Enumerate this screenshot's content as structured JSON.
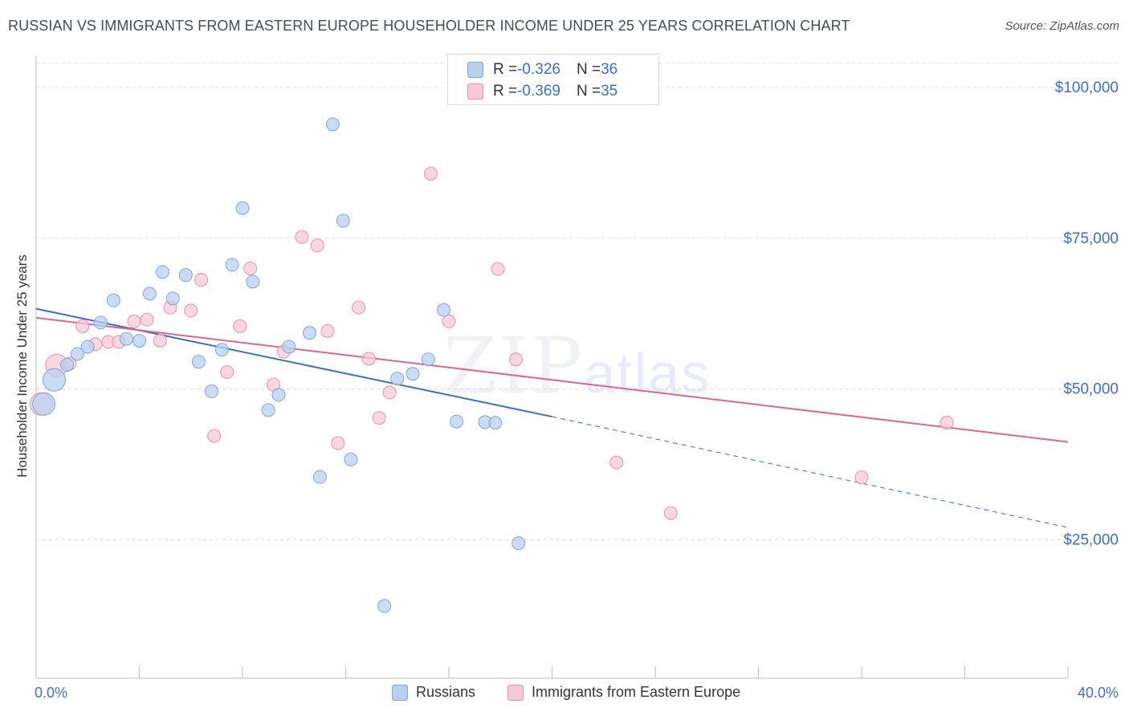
{
  "title": "RUSSIAN VS IMMIGRANTS FROM EASTERN EUROPE HOUSEHOLDER INCOME UNDER 25 YEARS CORRELATION CHART",
  "source": "Source: ZipAtlas.com",
  "watermark": {
    "zip": "ZIP",
    "atlas": "atlas"
  },
  "legend_top": {
    "rows": [
      {
        "r_label": "R = ",
        "r_value": "-0.326",
        "n_label": "N = ",
        "n_value": "36"
      },
      {
        "r_label": "R = ",
        "r_value": "-0.369",
        "n_label": "N = ",
        "n_value": "35"
      }
    ]
  },
  "colors": {
    "blue_fill": "#b8d0f0",
    "blue_stroke": "#7ea6dc",
    "blue_line": "#3b6fcc",
    "pink_fill": "#f7c8d6",
    "pink_stroke": "#e792ad",
    "pink_line": "#e0648e",
    "axis_text": "#3d6fc9",
    "grid": "#dddddd"
  },
  "chart_data": {
    "type": "scatter",
    "title": "RUSSIAN VS IMMIGRANTS FROM EASTERN EUROPE HOUSEHOLDER INCOME UNDER 25 YEARS CORRELATION CHART",
    "xlabel": "",
    "ylabel": "Householder Income Under 25 years",
    "xlim": [
      0,
      40
    ],
    "ylim": [
      2000,
      104000
    ],
    "x_tick_labels": [
      "0.0%",
      "40.0%"
    ],
    "y_ticks": [
      25000,
      50000,
      75000,
      100000
    ],
    "y_tick_labels": [
      "$25,000",
      "$50,000",
      "$75,000",
      "$100,000"
    ],
    "series": [
      {
        "name": "Russians",
        "r": -0.326,
        "n": 36,
        "trend": {
          "x_start": 0,
          "y_start": 63300,
          "x_solid_end": 20,
          "y_solid_end": 45400,
          "x_end": 40,
          "y_end": 27000
        },
        "points": [
          {
            "x": 0.3,
            "y": 47500,
            "big": true
          },
          {
            "x": 0.7,
            "y": 51500,
            "big": true
          },
          {
            "x": 1.2,
            "y": 54000
          },
          {
            "x": 1.6,
            "y": 55800
          },
          {
            "x": 2.0,
            "y": 57000
          },
          {
            "x": 2.5,
            "y": 61000
          },
          {
            "x": 3.0,
            "y": 64700
          },
          {
            "x": 3.5,
            "y": 58300
          },
          {
            "x": 4.0,
            "y": 58000
          },
          {
            "x": 4.4,
            "y": 65800
          },
          {
            "x": 4.9,
            "y": 69400
          },
          {
            "x": 5.3,
            "y": 65000
          },
          {
            "x": 5.8,
            "y": 68900
          },
          {
            "x": 6.3,
            "y": 54500
          },
          {
            "x": 6.8,
            "y": 49600
          },
          {
            "x": 7.2,
            "y": 56500
          },
          {
            "x": 7.6,
            "y": 70600
          },
          {
            "x": 8.0,
            "y": 80000
          },
          {
            "x": 8.4,
            "y": 67800
          },
          {
            "x": 9.0,
            "y": 46500
          },
          {
            "x": 9.4,
            "y": 49000
          },
          {
            "x": 9.8,
            "y": 57000
          },
          {
            "x": 10.6,
            "y": 59300
          },
          {
            "x": 11.0,
            "y": 35400
          },
          {
            "x": 11.5,
            "y": 93900
          },
          {
            "x": 11.9,
            "y": 77900
          },
          {
            "x": 12.2,
            "y": 38300
          },
          {
            "x": 13.5,
            "y": 14000
          },
          {
            "x": 14.0,
            "y": 51700
          },
          {
            "x": 14.6,
            "y": 52500
          },
          {
            "x": 15.2,
            "y": 54900
          },
          {
            "x": 15.8,
            "y": 63100
          },
          {
            "x": 16.3,
            "y": 44600
          },
          {
            "x": 17.4,
            "y": 44500
          },
          {
            "x": 17.8,
            "y": 44400
          },
          {
            "x": 18.7,
            "y": 24400
          }
        ]
      },
      {
        "name": "Immigrants from Eastern Europe",
        "r": -0.369,
        "n": 35,
        "trend": {
          "x_start": 0,
          "y_start": 61800,
          "x_end": 40,
          "y_end": 41200
        },
        "points": [
          {
            "x": 0.2,
            "y": 47500,
            "big": true
          },
          {
            "x": 0.8,
            "y": 53900,
            "big": true
          },
          {
            "x": 1.3,
            "y": 54200
          },
          {
            "x": 1.8,
            "y": 60400
          },
          {
            "x": 2.3,
            "y": 57400
          },
          {
            "x": 2.8,
            "y": 57800
          },
          {
            "x": 3.2,
            "y": 57800
          },
          {
            "x": 3.8,
            "y": 61200
          },
          {
            "x": 4.3,
            "y": 61500
          },
          {
            "x": 4.8,
            "y": 58000
          },
          {
            "x": 5.2,
            "y": 63500
          },
          {
            "x": 6.0,
            "y": 63000
          },
          {
            "x": 6.4,
            "y": 68100
          },
          {
            "x": 6.9,
            "y": 42200
          },
          {
            "x": 7.4,
            "y": 52800
          },
          {
            "x": 7.9,
            "y": 60400
          },
          {
            "x": 8.3,
            "y": 70000
          },
          {
            "x": 9.2,
            "y": 50700
          },
          {
            "x": 9.6,
            "y": 56200
          },
          {
            "x": 10.3,
            "y": 75200
          },
          {
            "x": 10.9,
            "y": 73800
          },
          {
            "x": 11.3,
            "y": 59600
          },
          {
            "x": 11.7,
            "y": 41000
          },
          {
            "x": 12.5,
            "y": 63500
          },
          {
            "x": 12.9,
            "y": 55000
          },
          {
            "x": 13.3,
            "y": 45200
          },
          {
            "x": 13.7,
            "y": 49400
          },
          {
            "x": 15.3,
            "y": 85700
          },
          {
            "x": 16.0,
            "y": 61200
          },
          {
            "x": 17.9,
            "y": 69900
          },
          {
            "x": 18.6,
            "y": 54900
          },
          {
            "x": 22.5,
            "y": 37800
          },
          {
            "x": 24.6,
            "y": 29400
          },
          {
            "x": 32.0,
            "y": 35300
          },
          {
            "x": 35.3,
            "y": 44400
          }
        ]
      }
    ]
  }
}
